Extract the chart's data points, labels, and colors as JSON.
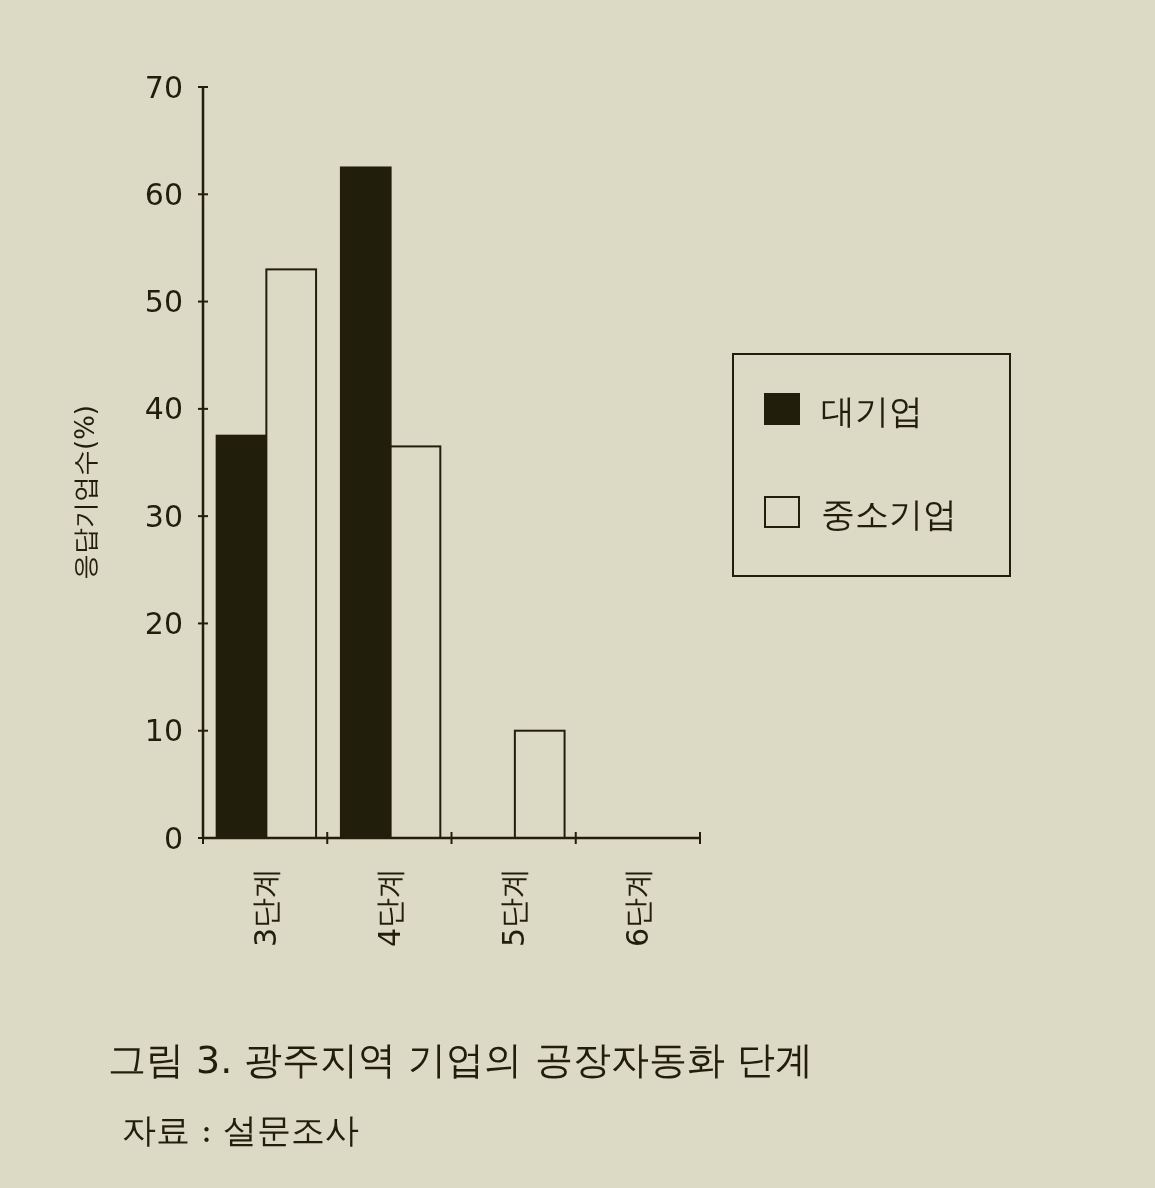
{
  "chart_data": {
    "type": "bar",
    "title": "그림 3. 광주지역 기업의 공장자동화 단계",
    "ylabel": "응답기업수(%)",
    "annotations": [
      "자료 : 설문조사"
    ],
    "categories": [
      "3단계",
      "4단계",
      "5단계",
      "6단계"
    ],
    "series": [
      {
        "name": "대기업",
        "color": "#221e0c",
        "values": [
          37.5,
          62.5,
          0,
          0
        ]
      },
      {
        "name": "중소기업",
        "color": "#dcd9c5",
        "values": [
          53,
          36.5,
          10,
          0
        ]
      }
    ],
    "ylim": [
      0,
      70
    ],
    "yticks": [
      0,
      10,
      20,
      30,
      40,
      50,
      60,
      70
    ],
    "legend": "right",
    "grid": false
  }
}
